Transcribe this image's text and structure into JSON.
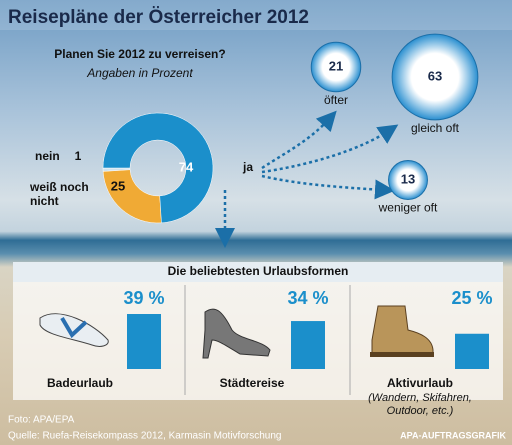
{
  "header": {
    "title": "Reisepläne der Österreicher 2012"
  },
  "chart_data": [
    {
      "type": "pie",
      "title": "Planen Sie 2012 zu verreisen?",
      "subtitle": "Angaben in Prozent",
      "categories": [
        "ja",
        "weiß noch nicht",
        "nein"
      ],
      "values": [
        74,
        25,
        1
      ],
      "colors": [
        "#1b8fcb",
        "#f0aa35",
        "#cfe3ef"
      ]
    },
    {
      "type": "bubble",
      "categories": [
        "öfter",
        "gleich oft",
        "weniger oft"
      ],
      "values": [
        21,
        63,
        13
      ],
      "color": "#2a8fd0"
    },
    {
      "type": "bar",
      "title": "Die beliebtesten Urlaubsformen",
      "categories": [
        "Badeurlaub",
        "Städtereise",
        "Aktivurlaub"
      ],
      "values": [
        39,
        34,
        25
      ],
      "value_labels": [
        "39 %",
        "34 %",
        "25 %"
      ],
      "color": "#1b8fcb",
      "notes": [
        null,
        null,
        "(Wandern, Skifahren, Outdoor, etc.)"
      ]
    }
  ],
  "footer": {
    "photo": "Foto: APA/EPA",
    "source": "Quelle: Ruefa-Reisekompass 2012, Karmasin Motivforschung",
    "credit": "APA-AUFTRAGSGRAFIK"
  }
}
